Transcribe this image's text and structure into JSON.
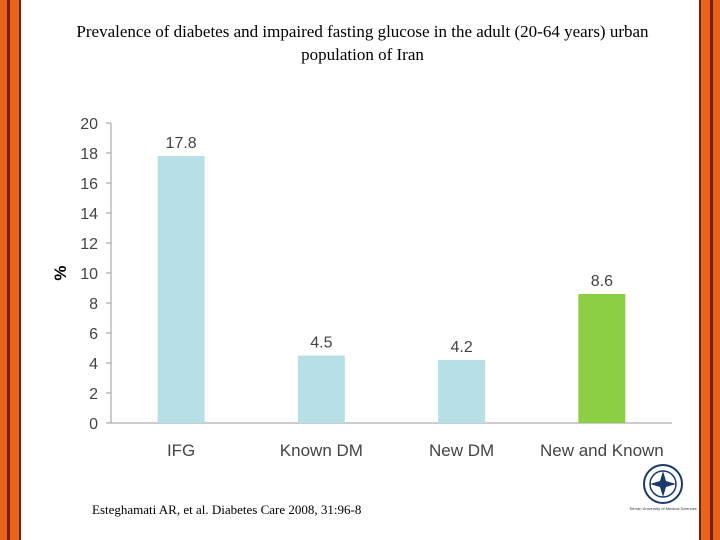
{
  "title": "Prevalence of diabetes and impaired fasting glucose in the adult (20-64 years) urban population of Iran",
  "citation": "Esteghamati AR, et al. Diabetes Care 2008, 31:96-8",
  "logo": {
    "icon": "university-emblem-icon",
    "text": "Tehran University of Medical Sciences"
  },
  "colors": {
    "stripe_orange": "#e8641c",
    "stripe_dark": "#7a1e06",
    "bar_blue": "#b7e0e6",
    "bar_green": "#8ccf45"
  },
  "chart_data": {
    "type": "bar",
    "title": "",
    "xlabel": "",
    "ylabel": "%",
    "ylim": [
      0,
      20
    ],
    "yticks": [
      0,
      2,
      4,
      6,
      8,
      10,
      12,
      14,
      16,
      18,
      20
    ],
    "grid": false,
    "categories": [
      "IFG",
      "Known DM",
      "New DM",
      "New and Known"
    ],
    "values": [
      17.8,
      4.5,
      4.2,
      8.6
    ],
    "data_labels": [
      "17.8",
      "4.5",
      "4.2",
      "8.6"
    ],
    "bar_colors": [
      "#b7e0e6",
      "#b7e0e6",
      "#b7e0e6",
      "#8ccf45"
    ]
  }
}
